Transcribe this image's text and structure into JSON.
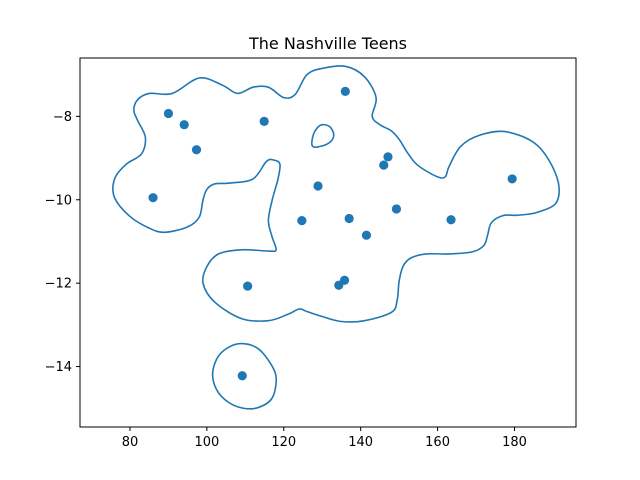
{
  "chart_data": {
    "type": "scatter",
    "title": "The Nashville Teens",
    "xlabel": "",
    "ylabel": "",
    "xlim": [
      67,
      196
    ],
    "ylim": [
      -15.45,
      -6.6
    ],
    "xticks": [
      80,
      100,
      120,
      140,
      160,
      180
    ],
    "yticks": [
      -8,
      -10,
      -12,
      -14
    ],
    "grid": false,
    "marker_color": "#1f77b4",
    "contour_color": "#1f77b4",
    "points": [
      {
        "x": 90.0,
        "y": -7.93
      },
      {
        "x": 94.1,
        "y": -8.2
      },
      {
        "x": 97.3,
        "y": -8.8
      },
      {
        "x": 86.0,
        "y": -9.95
      },
      {
        "x": 114.9,
        "y": -8.12
      },
      {
        "x": 136.0,
        "y": -7.4
      },
      {
        "x": 128.9,
        "y": -9.67
      },
      {
        "x": 124.7,
        "y": -10.5
      },
      {
        "x": 137.0,
        "y": -10.45
      },
      {
        "x": 141.5,
        "y": -10.85
      },
      {
        "x": 147.1,
        "y": -8.97
      },
      {
        "x": 146.0,
        "y": -9.17
      },
      {
        "x": 149.3,
        "y": -10.22
      },
      {
        "x": 163.5,
        "y": -10.48
      },
      {
        "x": 179.4,
        "y": -9.5
      },
      {
        "x": 110.6,
        "y": -12.07
      },
      {
        "x": 134.3,
        "y": -12.05
      },
      {
        "x": 135.8,
        "y": -11.93
      },
      {
        "x": 109.2,
        "y": -14.22
      }
    ],
    "contours": [
      [
        [
          91,
          -7.45
        ],
        [
          98,
          -7.08
        ],
        [
          104,
          -7.25
        ],
        [
          108,
          -7.45
        ],
        [
          112,
          -7.3
        ],
        [
          116,
          -7.3
        ],
        [
          120,
          -7.55
        ],
        [
          123,
          -7.47
        ],
        [
          126,
          -7.0
        ],
        [
          130,
          -6.85
        ],
        [
          136,
          -6.8
        ],
        [
          141,
          -7.05
        ],
        [
          144,
          -7.55
        ],
        [
          143,
          -8.0
        ],
        [
          145,
          -8.2
        ],
        [
          148,
          -8.35
        ],
        [
          150,
          -8.55
        ],
        [
          152,
          -8.85
        ],
        [
          154,
          -9.1
        ],
        [
          156,
          -9.25
        ],
        [
          160,
          -9.45
        ],
        [
          162,
          -9.45
        ],
        [
          163,
          -9.2
        ],
        [
          166,
          -8.72
        ],
        [
          171,
          -8.45
        ],
        [
          178,
          -8.37
        ],
        [
          186,
          -8.7
        ],
        [
          191,
          -9.45
        ],
        [
          191,
          -10.05
        ],
        [
          186,
          -10.3
        ],
        [
          181,
          -10.37
        ],
        [
          177,
          -10.38
        ],
        [
          174,
          -10.55
        ],
        [
          173,
          -10.85
        ],
        [
          172,
          -11.1
        ],
        [
          169,
          -11.25
        ],
        [
          163,
          -11.3
        ],
        [
          157,
          -11.3
        ],
        [
          153,
          -11.4
        ],
        [
          151,
          -11.6
        ],
        [
          150,
          -11.95
        ],
        [
          149.5,
          -12.4
        ],
        [
          148,
          -12.7
        ],
        [
          141,
          -12.9
        ],
        [
          135,
          -12.92
        ],
        [
          130,
          -12.8
        ],
        [
          126,
          -12.68
        ],
        [
          124,
          -12.62
        ],
        [
          121,
          -12.75
        ],
        [
          116,
          -12.9
        ],
        [
          109,
          -12.85
        ],
        [
          102,
          -12.45
        ],
        [
          99,
          -12.0
        ],
        [
          100,
          -11.6
        ],
        [
          103,
          -11.3
        ],
        [
          109,
          -11.2
        ],
        [
          116,
          -11.23
        ],
        [
          118,
          -11.2
        ],
        [
          117,
          -10.9
        ],
        [
          116,
          -10.5
        ],
        [
          117,
          -10.0
        ],
        [
          118.5,
          -9.5
        ],
        [
          119,
          -9.15
        ],
        [
          117.5,
          -9.05
        ],
        [
          115.5,
          -9.08
        ],
        [
          112,
          -9.5
        ],
        [
          106,
          -9.6
        ],
        [
          102,
          -9.62
        ],
        [
          100,
          -9.75
        ],
        [
          99,
          -10.0
        ],
        [
          98,
          -10.42
        ],
        [
          95,
          -10.65
        ],
        [
          89,
          -10.78
        ],
        [
          85,
          -10.68
        ],
        [
          80,
          -10.4
        ],
        [
          76,
          -9.95
        ],
        [
          76,
          -9.5
        ],
        [
          79,
          -9.15
        ],
        [
          83,
          -8.9
        ],
        [
          84,
          -8.5
        ],
        [
          82,
          -8.1
        ],
        [
          81,
          -7.85
        ],
        [
          82,
          -7.6
        ],
        [
          85,
          -7.45
        ],
        [
          91,
          -7.45
        ]
      ],
      [
        [
          127.5,
          -8.5
        ],
        [
          128.5,
          -8.3
        ],
        [
          130,
          -8.2
        ],
        [
          132,
          -8.25
        ],
        [
          133,
          -8.45
        ],
        [
          132,
          -8.62
        ],
        [
          129.5,
          -8.72
        ],
        [
          127.5,
          -8.72
        ],
        [
          127.5,
          -8.5
        ]
      ],
      [
        [
          109.2,
          -13.45
        ],
        [
          113,
          -13.55
        ],
        [
          116,
          -13.85
        ],
        [
          118,
          -14.25
        ],
        [
          117,
          -14.75
        ],
        [
          113.5,
          -14.98
        ],
        [
          109.5,
          -15.0
        ],
        [
          105.5,
          -14.85
        ],
        [
          102.5,
          -14.55
        ],
        [
          101.5,
          -14.15
        ],
        [
          103,
          -13.75
        ],
        [
          106,
          -13.52
        ],
        [
          109.2,
          -13.45
        ]
      ]
    ]
  }
}
